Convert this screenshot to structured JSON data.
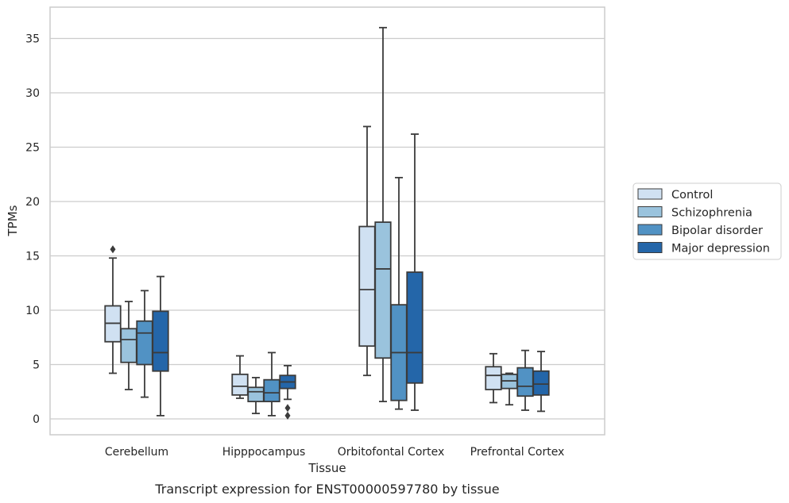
{
  "chart_data": {
    "type": "box",
    "caption": "Transcript expression for ENST00000597780 by tissue",
    "xlabel": "Tissue",
    "ylabel": "TPMs",
    "ylim": [
      -1.5,
      37.5
    ],
    "yticks": [
      0,
      5,
      10,
      15,
      20,
      25,
      30,
      35
    ],
    "grid": "horizontal",
    "legend_position": "right",
    "categories": [
      "Cerebellum",
      "Hipppocampus",
      "Orbitofontal Cortex",
      "Prefrontal Cortex"
    ],
    "series": [
      {
        "name": "Control",
        "color": "#d0e1f2",
        "boxes": [
          {
            "whislo": 4.2,
            "q1": 7.1,
            "med": 8.8,
            "q3": 10.4,
            "whishi": 14.8,
            "fliers": [
              15.6
            ]
          },
          {
            "whislo": 1.9,
            "q1": 2.2,
            "med": 3.0,
            "q3": 4.1,
            "whishi": 5.8,
            "fliers": []
          },
          {
            "whislo": 4.0,
            "q1": 6.7,
            "med": 11.9,
            "q3": 17.7,
            "whishi": 26.9,
            "fliers": []
          },
          {
            "whislo": 1.5,
            "q1": 2.7,
            "med": 4.0,
            "q3": 4.8,
            "whishi": 6.0,
            "fliers": []
          }
        ]
      },
      {
        "name": "Schizophrenia",
        "color": "#9ac3dd",
        "boxes": [
          {
            "whislo": 2.7,
            "q1": 5.2,
            "med": 7.3,
            "q3": 8.3,
            "whishi": 10.8,
            "fliers": []
          },
          {
            "whislo": 0.5,
            "q1": 1.6,
            "med": 2.5,
            "q3": 2.9,
            "whishi": 3.8,
            "fliers": []
          },
          {
            "whislo": 1.6,
            "q1": 5.6,
            "med": 13.8,
            "q3": 18.1,
            "whishi": 36.0,
            "fliers": []
          },
          {
            "whislo": 1.3,
            "q1": 2.8,
            "med": 3.5,
            "q3": 4.1,
            "whishi": 4.2,
            "fliers": []
          }
        ]
      },
      {
        "name": "Bipolar disorder",
        "color": "#5192c4",
        "boxes": [
          {
            "whislo": 2.0,
            "q1": 5.0,
            "med": 7.9,
            "q3": 9.0,
            "whishi": 11.8,
            "fliers": []
          },
          {
            "whislo": 0.3,
            "q1": 1.6,
            "med": 2.4,
            "q3": 3.6,
            "whishi": 6.1,
            "fliers": []
          },
          {
            "whislo": 0.9,
            "q1": 1.7,
            "med": 6.1,
            "q3": 10.5,
            "whishi": 22.2,
            "fliers": []
          },
          {
            "whislo": 0.8,
            "q1": 2.1,
            "med": 3.0,
            "q3": 4.7,
            "whishi": 6.3,
            "fliers": []
          }
        ]
      },
      {
        "name": "Major depression",
        "color": "#2466a9",
        "boxes": [
          {
            "whislo": 0.3,
            "q1": 4.4,
            "med": 6.1,
            "q3": 9.9,
            "whishi": 13.1,
            "fliers": []
          },
          {
            "whislo": 1.8,
            "q1": 2.8,
            "med": 3.4,
            "q3": 4.0,
            "whishi": 4.9,
            "fliers": [
              1.0,
              0.3
            ]
          },
          {
            "whislo": 0.8,
            "q1": 3.3,
            "med": 6.1,
            "q3": 13.5,
            "whishi": 26.2,
            "fliers": []
          },
          {
            "whislo": 0.7,
            "q1": 2.2,
            "med": 3.2,
            "q3": 4.4,
            "whishi": 6.2,
            "fliers": []
          }
        ]
      }
    ]
  }
}
